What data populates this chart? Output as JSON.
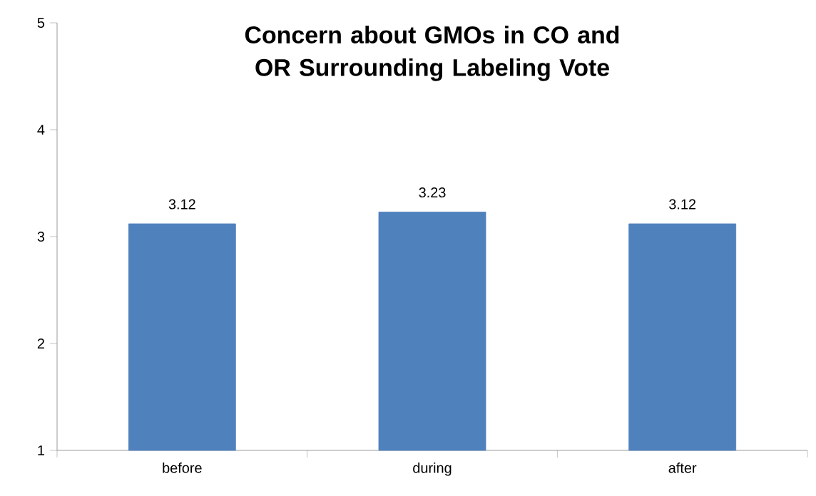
{
  "chart_data": {
    "type": "bar",
    "title": "Concern about GMOs in CO and OR Surrounding Labeling Vote",
    "categories": [
      "before",
      "during",
      "after"
    ],
    "values": [
      3.12,
      3.23,
      3.12
    ],
    "color": "#4f81bd",
    "ylim": [
      1,
      5
    ],
    "yticks": [
      1,
      2,
      3,
      4,
      5
    ],
    "data_labels": true
  }
}
